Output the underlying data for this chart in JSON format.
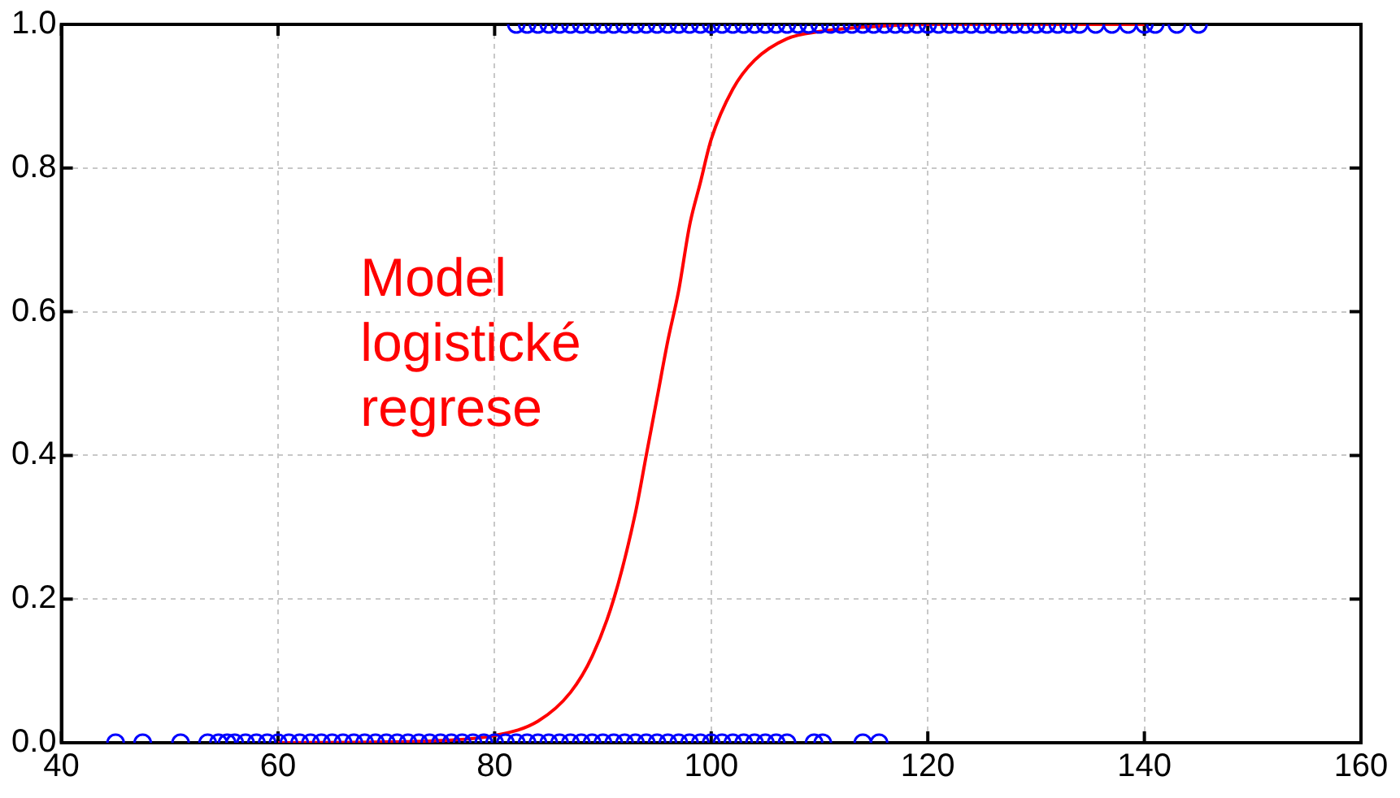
{
  "chart_data": {
    "type": "scatter",
    "xlim": [
      40,
      160
    ],
    "ylim": [
      0,
      1
    ],
    "xticks": [
      40,
      60,
      80,
      100,
      120,
      140,
      160
    ],
    "yticks": [
      {
        "value": 0,
        "label": "0.0"
      },
      {
        "value": 0.2,
        "label": "0.2"
      },
      {
        "value": 0.4,
        "label": "0.4"
      },
      {
        "value": 0.6,
        "label": "0.6"
      },
      {
        "value": 0.8,
        "label": "0.8"
      },
      {
        "value": 1,
        "label": "1.0"
      }
    ],
    "grid": true,
    "legend": false,
    "marker": "circle",
    "series": [
      {
        "color": "#0000ff",
        "x": [
          45,
          47.5,
          51,
          53.5,
          54.5,
          55.3,
          56,
          57,
          58,
          59,
          60,
          61,
          62,
          63,
          64,
          65,
          66,
          67,
          68,
          69,
          70,
          71,
          72,
          73,
          74,
          75,
          76,
          77,
          78,
          79,
          80,
          81,
          82,
          83,
          84,
          85,
          86,
          87,
          88,
          89,
          90,
          91,
          92,
          93,
          94,
          95,
          96,
          97,
          98,
          99,
          100,
          101,
          102,
          103,
          104,
          105,
          106,
          107,
          109.5,
          110.3,
          114,
          115.5
        ],
        "values": [
          0,
          0,
          0,
          0,
          0,
          0,
          0,
          0,
          0,
          0,
          0,
          0,
          0,
          0,
          0,
          0,
          0,
          0,
          0,
          0,
          0,
          0,
          0,
          0,
          0,
          0,
          0,
          0,
          0,
          0,
          0,
          0,
          0,
          0,
          0,
          0,
          0,
          0,
          0,
          0,
          0,
          0,
          0,
          0,
          0,
          0,
          0,
          0,
          0,
          0,
          0,
          0,
          0,
          0,
          0,
          0,
          0,
          0,
          0,
          0,
          0,
          0
        ]
      },
      {
        "color": "#0000ff",
        "x": [
          82,
          83,
          84,
          85,
          86,
          87,
          88,
          89,
          90,
          91,
          92,
          93,
          94,
          95,
          96,
          97,
          98,
          99,
          100,
          101,
          102,
          103,
          104,
          105,
          106,
          107,
          108,
          109,
          110,
          111,
          112,
          113,
          114,
          115,
          116,
          117,
          118,
          119,
          120,
          121,
          122,
          123,
          124,
          125,
          126,
          127,
          128,
          129,
          130,
          131,
          132,
          133,
          134,
          135.5,
          137,
          138.5,
          140,
          141,
          143,
          145
        ],
        "values": [
          1,
          1,
          1,
          1,
          1,
          1,
          1,
          1,
          1,
          1,
          1,
          1,
          1,
          1,
          1,
          1,
          1,
          1,
          1,
          1,
          1,
          1,
          1,
          1,
          1,
          1,
          1,
          1,
          1,
          1,
          1,
          1,
          1,
          1,
          1,
          1,
          1,
          1,
          1,
          1,
          1,
          1,
          1,
          1,
          1,
          1,
          1,
          1,
          1,
          1,
          1,
          1,
          1,
          1,
          1,
          1,
          1,
          1,
          1,
          1
        ]
      },
      {
        "type": "line",
        "name": "Model logistické regrese",
        "color": "#ff0000",
        "marker": "none",
        "x": [
          60,
          70,
          75,
          80,
          84,
          87,
          89,
          91,
          93,
          94,
          95,
          96,
          97,
          98,
          99,
          100,
          102,
          104,
          107,
          110,
          115,
          120,
          130,
          140
        ],
        "values": [
          0,
          0.001,
          0.003,
          0.01,
          0.03,
          0.07,
          0.12,
          0.2,
          0.32,
          0.4,
          0.48,
          0.56,
          0.63,
          0.72,
          0.78,
          0.84,
          0.91,
          0.95,
          0.98,
          0.99,
          0.997,
          1,
          1,
          1
        ]
      }
    ]
  }
}
